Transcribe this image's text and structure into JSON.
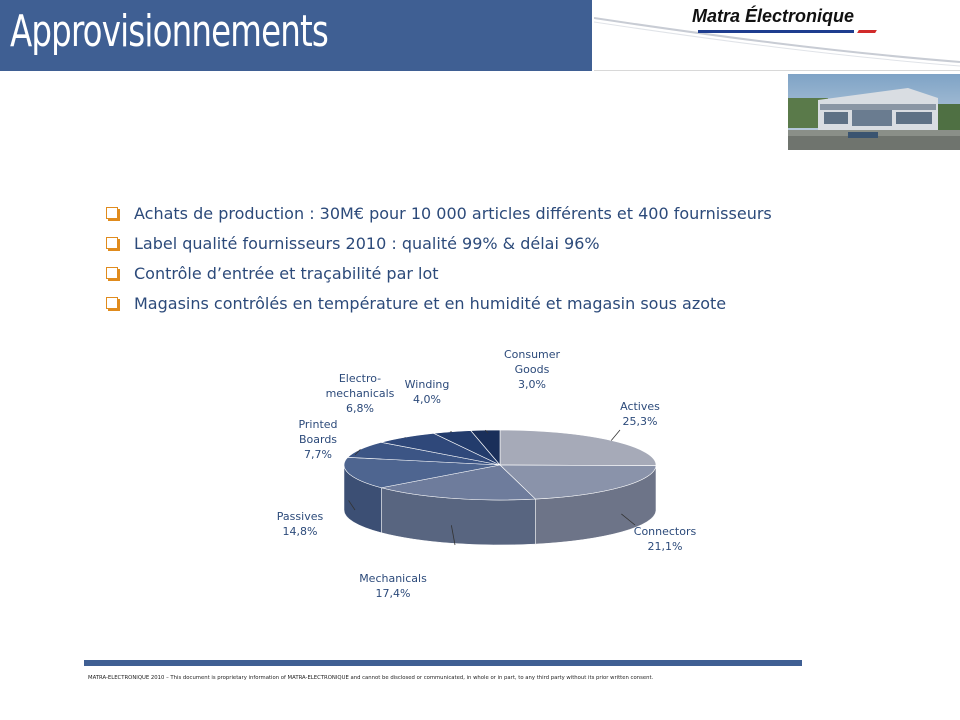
{
  "title": "Approvisionnements",
  "logo": {
    "text": "Matra Électronique"
  },
  "bullets": [
    "Achats de production  : 30M€ pour 10 000 articles différents  et 400 fournisseurs",
    "Label qualité fournisseurs  2010 : qualité 99% & délai 96%",
    "Contrôle d’entrée  et traçabilité par lot",
    "Magasins contrôlés en température et en humidité et magasin sous azote"
  ],
  "colors": {
    "title_bar": "#3f5f93",
    "text": "#2c4a7a",
    "bullet": "#e08b1d"
  },
  "chart_data": {
    "type": "pie",
    "style": "3d",
    "categories": [
      "Actives",
      "Connectors",
      "Mechanicals",
      "Passives",
      "Printed Boards",
      "Electro-mechanicals",
      "Winding",
      "Consumer Goods"
    ],
    "label_lines": [
      [
        "Actives"
      ],
      [
        "Connectors"
      ],
      [
        "Mechanicals"
      ],
      [
        "Passives"
      ],
      [
        "Printed",
        "Boards"
      ],
      [
        "Electro-",
        "mechanicals"
      ],
      [
        "Winding"
      ],
      [
        "Consumer",
        "Goods"
      ]
    ],
    "values": [
      25.3,
      21.1,
      17.4,
      14.8,
      7.7,
      6.8,
      4.0,
      3.0
    ],
    "value_labels": [
      "25,3%",
      "21,1%",
      "17,4%",
      "14,8%",
      "7,7%",
      "6,8%",
      "4,0%",
      "3,0%"
    ],
    "colors": [
      "#a6aab8",
      "#8a93aa",
      "#6e7c9c",
      "#4e6590",
      "#3c5585",
      "#2f487a",
      "#233c6c",
      "#1a2f5a"
    ],
    "side_colors": [
      "#878b97",
      "#6d7488",
      "#586580",
      "#3c4f74",
      "#2e436b",
      "#233a62",
      "#1a2f57",
      "#132447"
    ],
    "legend": "none"
  },
  "footer": "MATRA-ELECTRONIQUE  2010 – This document is proprietary information of MATRA-ELECTRONIQUE and cannot be disclosed or communicated,  in whole or  in part, to any  third  party without  its prior written consent."
}
